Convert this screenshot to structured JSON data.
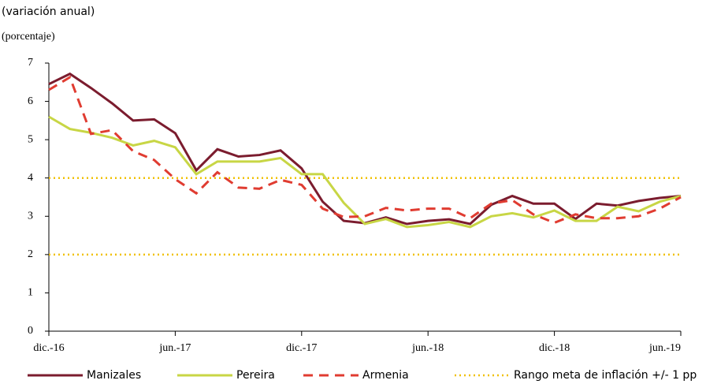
{
  "chart_data": {
    "type": "line",
    "title": "(variación anual)",
    "subtitle": "(porcentaje)",
    "categories": [
      "dic.-16",
      null,
      null,
      null,
      null,
      null,
      "jun.-17",
      null,
      null,
      null,
      null,
      null,
      "dic.-17",
      null,
      null,
      null,
      null,
      null,
      "jun.-18",
      null,
      null,
      null,
      null,
      null,
      "dic.-18",
      null,
      null,
      null,
      null,
      null,
      "jun.-19"
    ],
    "series": [
      {
        "name": "Manizales",
        "color": "#7b1c2e",
        "dash": "solid",
        "values": [
          6.45,
          6.72,
          6.35,
          5.95,
          5.5,
          5.53,
          5.17,
          4.2,
          4.75,
          4.56,
          4.6,
          4.72,
          4.25,
          3.38,
          2.88,
          2.82,
          2.97,
          2.8,
          2.88,
          2.92,
          2.8,
          3.3,
          3.53,
          3.33,
          3.33,
          2.93,
          3.33,
          3.28,
          3.4,
          3.48,
          3.53
        ]
      },
      {
        "name": "Pereira",
        "color": "#c8d645",
        "dash": "solid",
        "values": [
          5.6,
          5.28,
          5.18,
          5.05,
          4.85,
          4.97,
          4.8,
          4.1,
          4.43,
          4.43,
          4.43,
          4.52,
          4.1,
          4.1,
          3.35,
          2.8,
          2.93,
          2.72,
          2.77,
          2.85,
          2.72,
          3.0,
          3.08,
          2.97,
          3.15,
          2.88,
          2.88,
          3.25,
          3.13,
          3.38,
          3.53
        ]
      },
      {
        "name": "Armenia",
        "color": "#e03c31",
        "dash": "dashed",
        "values": [
          6.3,
          6.63,
          5.15,
          5.25,
          4.7,
          4.47,
          3.97,
          3.6,
          4.15,
          3.75,
          3.72,
          3.95,
          3.82,
          3.2,
          2.98,
          3.0,
          3.22,
          3.15,
          3.2,
          3.2,
          2.95,
          3.33,
          3.42,
          3.05,
          2.83,
          3.05,
          2.95,
          2.95,
          3.0,
          3.2,
          3.5
        ]
      }
    ],
    "reference_lines": {
      "name": "Rango meta de inflación +/- 1 pp",
      "color": "#f0c000",
      "values": [
        4,
        2
      ]
    },
    "ylim": [
      0,
      7
    ],
    "yticks": [
      0,
      1,
      2,
      3,
      4,
      5,
      6,
      7
    ]
  }
}
